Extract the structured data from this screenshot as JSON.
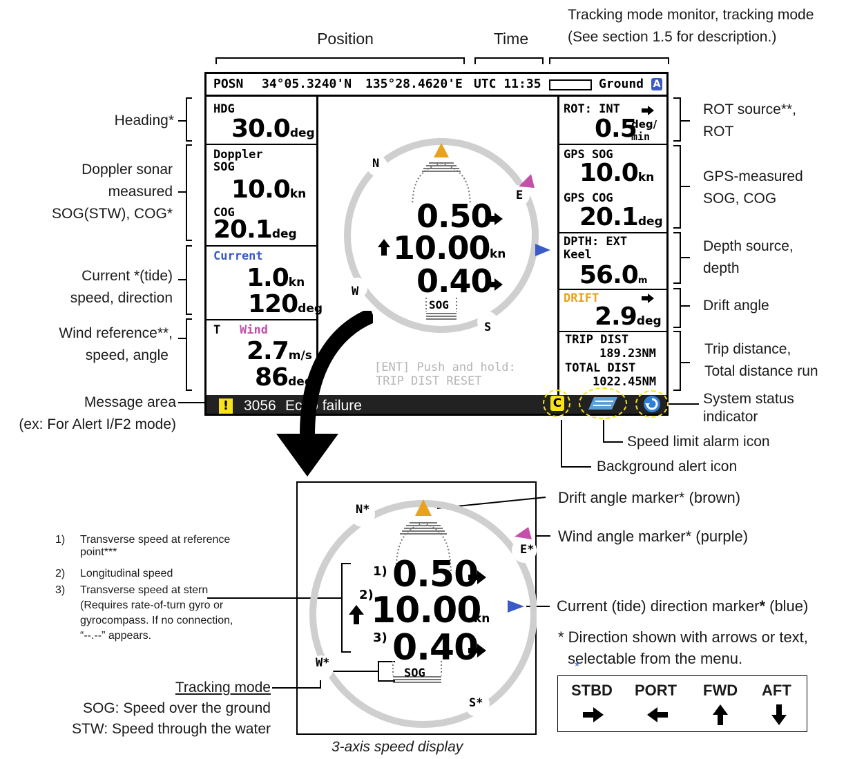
{
  "colors": {
    "drift": "#e8a21c",
    "wind": "#c44fa8",
    "current": "#3a5bc7",
    "alert_yellow": "#f7e21b",
    "ring": "#cfcfcf"
  },
  "top_labels": {
    "position": "Position",
    "time": "Time",
    "tracking_line1": "Tracking mode monitor, tracking mode",
    "tracking_line2": "(See section 1.5 for description.)"
  },
  "left_labels": {
    "heading": "Heading*",
    "doppler_line1": "Doppler sonar",
    "doppler_line2": "measured",
    "doppler_line3": "SOG(STW), COG*",
    "current_line1": "Current *(tide)",
    "current_line2": "speed, direction",
    "wind_line1": "Wind  reference**,",
    "wind_line2": "speed, angle",
    "message_line1": "Message area",
    "message_line2": "(ex: For Alert I/F2 mode)"
  },
  "right_labels": {
    "rot_line1": "ROT source**,",
    "rot_line2": "ROT",
    "gps_line1": "GPS-measured",
    "gps_line2": "SOG, COG",
    "depth_line1": "Depth source,",
    "depth_line2": "depth",
    "drift": "Drift angle",
    "trip_line1": "Trip distance,",
    "trip_line2": "Total distance run",
    "status_line1": "System status",
    "status_line2": "indicator",
    "speed_limit": "Speed limit alarm icon",
    "background_alert": "Background alert icon"
  },
  "screen": {
    "top_bar": {
      "posn_label": "POSN",
      "lat": "34°05.3240'N",
      "lon": "135°28.4620'E",
      "time": "UTC 11:35",
      "mode": "Ground",
      "mode_badge": "A"
    },
    "hdg": {
      "label": "HDG",
      "value": "30.0",
      "unit": "deg"
    },
    "doppler": {
      "label1": "Doppler",
      "label2": "SOG",
      "sog": "10.0",
      "sog_unit": "kn",
      "cog_label": "COG",
      "cog": "20.1",
      "cog_unit": "deg"
    },
    "current": {
      "label": "Current",
      "speed": "1.0",
      "speed_unit": "kn",
      "dir": "120",
      "dir_unit": "deg"
    },
    "wind": {
      "ref": "T",
      "label": "Wind",
      "speed": "2.7",
      "speed_unit": "m/s",
      "angle": "86",
      "angle_unit": "deg"
    },
    "rot": {
      "label": "ROT: INT",
      "value": "0.5",
      "unit_top": "deg/",
      "unit_bottom": "min"
    },
    "gps": {
      "sog_label": "GPS SOG",
      "sog": "10.0",
      "sog_unit": "kn",
      "cog_label": "GPS COG",
      "cog": "20.1",
      "cog_unit": "deg"
    },
    "depth": {
      "label1": "DPTH: EXT",
      "label2": "Keel",
      "value": "56.0",
      "unit": "m"
    },
    "drift": {
      "label": "DRIFT",
      "value": "2.9",
      "unit": "deg"
    },
    "trip": {
      "trip_label": "TRIP DIST",
      "trip": "189.23NM",
      "total_label": "TOTAL DIST",
      "total": "1022.45NM"
    },
    "center": {
      "cardinal_n": "N",
      "cardinal_e": "E",
      "cardinal_s": "S",
      "cardinal_w": "W",
      "transverse": "0.50",
      "longitudinal": "10.00",
      "long_unit": "kn",
      "stern": "0.40",
      "mode": "SOG",
      "hint1": "[ENT] Push and hold:",
      "hint2": "TRIP DIST RESET"
    },
    "message": {
      "code": "3056",
      "text": "Echo failure",
      "alert_icon": "C"
    }
  },
  "detail": {
    "cardinal_n": "N*",
    "cardinal_e": "E*",
    "cardinal_s": "S*",
    "cardinal_w": "W*",
    "transverse": "0.50",
    "longitudinal": "10.00",
    "long_unit": "kn",
    "stern": "0.40",
    "mode": "SOG",
    "label1": "1)",
    "label2": "2)",
    "label3": "3)",
    "caption": "3-axis speed display"
  },
  "detail_labels": {
    "drift_marker": "Drift angle marker* (brown)",
    "wind_marker": "Wind angle marker* (purple)",
    "current_marker_text": "Current (tide) direction marker",
    "current_marker_star": "*",
    "current_marker_suffix": " (blue)",
    "direction_note_line1": "* Direction shown with arrows or text,",
    "direction_note_line2": "selectable from the menu.",
    "tracking_mode": "Tracking mode",
    "sog_desc": "SOG: Speed over the ground",
    "stw_desc": "STW: Speed through the water"
  },
  "notes": {
    "n1_num": "1)",
    "n1_line1": "Transverse speed at reference",
    "n1_line2": "point***",
    "n2_num": "2)",
    "n2_line1": "Longitudinal speed",
    "n3_num": "3)",
    "n3_line1": "Transverse speed at stern",
    "n3_line2": "(Requires rate-of-turn gyro or",
    "n3_line3": "gyrocompass. If no connection,",
    "n3_line4": "“--.--” appears."
  },
  "direction_legend": {
    "star": "*",
    "items": [
      {
        "label": "STBD",
        "icon": "right-arrow-icon"
      },
      {
        "label": "PORT",
        "icon": "left-arrow-icon"
      },
      {
        "label": "FWD",
        "icon": "up-arrow-icon"
      },
      {
        "label": "AFT",
        "icon": "down-arrow-icon"
      }
    ]
  }
}
